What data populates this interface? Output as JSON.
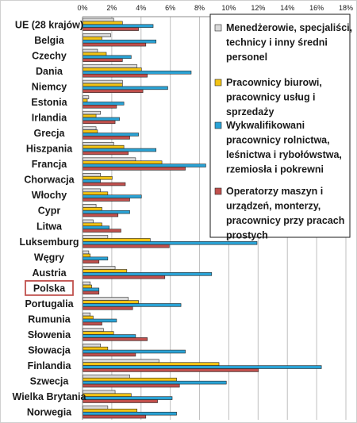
{
  "chart_data": {
    "type": "bar",
    "orientation": "horizontal",
    "title": "",
    "xlabel": "",
    "ylabel": "",
    "xlim": [
      0,
      18
    ],
    "x_ticks": [
      "0%",
      "2%",
      "4%",
      "6%",
      "8%",
      "10%",
      "12%",
      "14%",
      "16%",
      "18%"
    ],
    "grid": true,
    "legend_position": "right",
    "highlighted_category": "Polska",
    "highlight_color": "#c0504d",
    "categories": [
      "UE (28 krajów)",
      "Belgia",
      "Czechy",
      "Dania",
      "Niemcy",
      "Estonia",
      "Irlandia",
      "Grecja",
      "Hiszpania",
      "Francja",
      "Chorwacja",
      "Włochy",
      "Cypr",
      "Litwa",
      "Luksemburg",
      "Węgry",
      "Austria",
      "Polska",
      "Portugalia",
      "Rumunia",
      "Słowenia",
      "Słowacja",
      "Finlandia",
      "Szwecja",
      "Wielka Brytania",
      "Norwegia"
    ],
    "series": [
      {
        "name": "Menedżerowie, specjaliści, technicy i inny średni personel",
        "color": "#d9d9d9",
        "values": [
          2.1,
          1.9,
          1.0,
          3.7,
          2.7,
          0.4,
          1.2,
          0.9,
          2.1,
          3.6,
          1.2,
          1.2,
          0.9,
          0.7,
          1.7,
          0.4,
          2.2,
          0.5,
          3.1,
          0.5,
          1.4,
          1.2,
          5.2,
          3.2,
          2.2,
          1.7
        ]
      },
      {
        "name": "Pracownicy biurowi, pracownicy usług i sprzedaży",
        "color": "#f2c314",
        "values": [
          2.7,
          1.3,
          1.6,
          4.0,
          2.7,
          0.3,
          0.9,
          1.0,
          2.8,
          5.4,
          2.0,
          1.7,
          1.3,
          1.3,
          4.6,
          0.5,
          3.0,
          0.6,
          3.8,
          0.7,
          2.1,
          1.7,
          9.3,
          6.4,
          3.3,
          3.7
        ]
      },
      {
        "name": "Wykwalifikowani pracownicy rolnictwa, leśnictwa i rybołówstwa, rzemiosła i pokrewni",
        "color": "#2aa3d6",
        "values": [
          4.8,
          5.0,
          3.3,
          7.4,
          5.8,
          2.8,
          2.5,
          3.8,
          5.0,
          8.4,
          1.2,
          4.0,
          3.2,
          1.8,
          11.9,
          1.7,
          8.8,
          1.1,
          6.7,
          2.3,
          3.6,
          7.0,
          16.3,
          9.8,
          6.1,
          6.4
        ]
      },
      {
        "name": "Operatorzy maszyn i urządzeń, monterzy, pracownicy przy pracach prostych",
        "color": "#c0504d",
        "values": [
          3.8,
          4.3,
          2.7,
          4.4,
          4.1,
          2.3,
          2.2,
          3.2,
          3.1,
          7.0,
          2.9,
          3.2,
          2.4,
          2.6,
          5.9,
          1.1,
          5.6,
          1.1,
          3.4,
          1.3,
          4.4,
          3.6,
          12.0,
          6.6,
          5.1,
          4.3
        ]
      }
    ]
  }
}
